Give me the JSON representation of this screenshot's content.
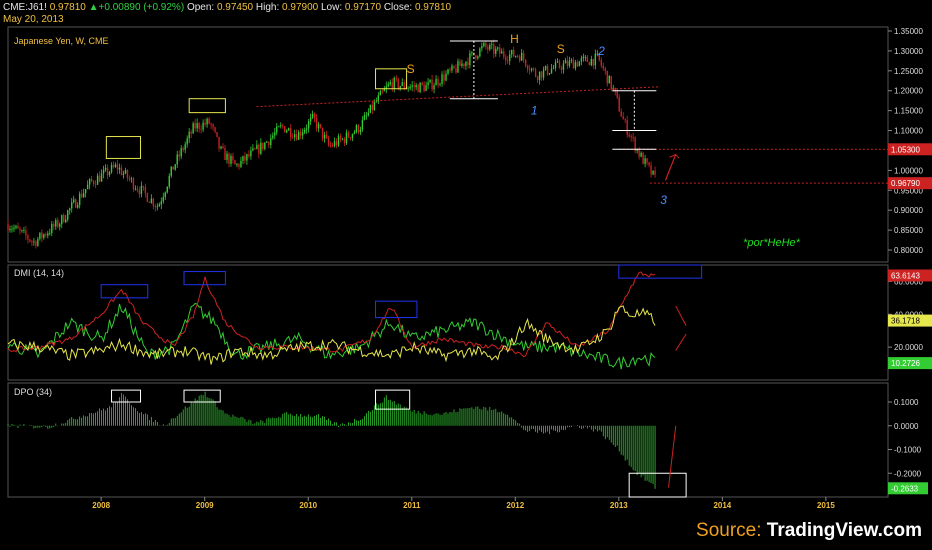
{
  "header": {
    "symbol": "CME:J61!",
    "last": "0.97810",
    "change": "+0.00890 (+0.92%)",
    "open_label": "Open:",
    "open": "0.97450",
    "high_label": "High:",
    "high": "0.97900",
    "low_label": "Low:",
    "low": "0.97170",
    "close_label": "Close:",
    "close": "0.97810",
    "date": "May 20, 2013"
  },
  "source": {
    "prefix": "Source: ",
    "brand": "TradingView.com"
  },
  "colors": {
    "up": "#33cc33",
    "down": "#cc2222",
    "dmi_plus": "#33cc33",
    "dmi_minus": "#cc2222",
    "adx": "#e6e64d",
    "box_yellow": "#e6e64d",
    "box_blue": "#2233ee",
    "box_white": "#ffffff",
    "annotation_orange": "#f0a020",
    "annotation_blue": "#4d8cff",
    "watermark": "#22dd22"
  },
  "chart_data": [
    {
      "type": "candlestick",
      "title": "Japanese Yen, W, CME",
      "ylim": [
        0.77,
        1.36
      ],
      "y_ticks": [
        "1.35000",
        "1.30000",
        "1.25000",
        "1.20000",
        "1.15000",
        "1.10000",
        "1.05000",
        "1.00000",
        "0.95000",
        "0.90000",
        "0.85000",
        "0.80000"
      ],
      "x_ticks": [
        "2008",
        "2009",
        "2010",
        "2011",
        "2012",
        "2013",
        "2014",
        "2015"
      ],
      "x_range": [
        2007.1,
        2015.6
      ],
      "price_path": [
        [
          2007.1,
          0.865
        ],
        [
          2007.35,
          0.82
        ],
        [
          2007.6,
          0.87
        ],
        [
          2007.9,
          0.97
        ],
        [
          2008.15,
          1.01
        ],
        [
          2008.3,
          0.97
        ],
        [
          2008.55,
          0.91
        ],
        [
          2008.7,
          1.01
        ],
        [
          2008.9,
          1.11
        ],
        [
          2009.05,
          1.12
        ],
        [
          2009.15,
          1.05
        ],
        [
          2009.3,
          1.01
        ],
        [
          2009.55,
          1.06
        ],
        [
          2009.75,
          1.11
        ],
        [
          2009.9,
          1.09
        ],
        [
          2010.05,
          1.13
        ],
        [
          2010.2,
          1.06
        ],
        [
          2010.35,
          1.08
        ],
        [
          2010.5,
          1.11
        ],
        [
          2010.65,
          1.17
        ],
        [
          2010.8,
          1.22
        ],
        [
          2010.95,
          1.21
        ],
        [
          2011.15,
          1.21
        ],
        [
          2011.4,
          1.25
        ],
        [
          2011.55,
          1.28
        ],
        [
          2011.7,
          1.31
        ],
        [
          2011.9,
          1.29
        ],
        [
          2012.05,
          1.29
        ],
        [
          2012.2,
          1.24
        ],
        [
          2012.4,
          1.26
        ],
        [
          2012.55,
          1.27
        ],
        [
          2012.8,
          1.28
        ],
        [
          2012.95,
          1.2
        ],
        [
          2013.05,
          1.12
        ],
        [
          2013.2,
          1.04
        ],
        [
          2013.35,
          0.978
        ]
      ],
      "price_labels": [
        {
          "text": "1.05300",
          "value": 1.053
        },
        {
          "text": "0.96790",
          "value": 0.9679
        }
      ],
      "annotations": {
        "s_left": "S",
        "head": "H",
        "s_right": "S",
        "wave1": "1",
        "wave2": "2",
        "wave3": "3",
        "watermark": "*por*HeHe*"
      }
    },
    {
      "type": "line",
      "title": "DMI (14, 14)",
      "series": [],
      "y_ticks": [
        "60.0000",
        "40.0000",
        "20.0000"
      ],
      "ylim": [
        0,
        70
      ],
      "value_labels": [
        {
          "text": "63.6143",
          "value": 63.6143
        },
        {
          "text": "36.1718",
          "value": 36.1718
        },
        {
          "text": "10.2726",
          "value": 10.2726
        }
      ],
      "plus_path": [
        [
          2007.1,
          22
        ],
        [
          2007.4,
          15
        ],
        [
          2007.7,
          35
        ],
        [
          2008.0,
          25
        ],
        [
          2008.2,
          45
        ],
        [
          2008.45,
          15
        ],
        [
          2008.7,
          20
        ],
        [
          2008.9,
          45
        ],
        [
          2009.1,
          35
        ],
        [
          2009.3,
          15
        ],
        [
          2009.6,
          20
        ],
        [
          2009.9,
          25
        ],
        [
          2010.2,
          15
        ],
        [
          2010.5,
          20
        ],
        [
          2010.8,
          35
        ],
        [
          2011.0,
          25
        ],
        [
          2011.3,
          30
        ],
        [
          2011.6,
          35
        ],
        [
          2011.9,
          25
        ],
        [
          2012.1,
          20
        ],
        [
          2012.4,
          20
        ],
        [
          2012.7,
          15
        ],
        [
          2013.0,
          10
        ],
        [
          2013.2,
          14
        ],
        [
          2013.35,
          12
        ]
      ],
      "minus_path": [
        [
          2007.1,
          18
        ],
        [
          2007.4,
          20
        ],
        [
          2007.7,
          25
        ],
        [
          2008.0,
          40
        ],
        [
          2008.2,
          55
        ],
        [
          2008.4,
          35
        ],
        [
          2008.7,
          20
        ],
        [
          2008.9,
          40
        ],
        [
          2009.0,
          62
        ],
        [
          2009.2,
          35
        ],
        [
          2009.5,
          20
        ],
        [
          2009.9,
          20
        ],
        [
          2010.3,
          18
        ],
        [
          2010.6,
          25
        ],
        [
          2010.8,
          45
        ],
        [
          2011.0,
          20
        ],
        [
          2011.3,
          25
        ],
        [
          2011.7,
          20
        ],
        [
          2011.9,
          20
        ],
        [
          2012.1,
          15
        ],
        [
          2012.3,
          35
        ],
        [
          2012.6,
          20
        ],
        [
          2012.9,
          30
        ],
        [
          2013.1,
          55
        ],
        [
          2013.2,
          65
        ],
        [
          2013.35,
          63
        ]
      ],
      "adx_path": [
        [
          2007.1,
          22
        ],
        [
          2007.4,
          20
        ],
        [
          2007.7,
          15
        ],
        [
          2008.0,
          18
        ],
        [
          2008.2,
          22
        ],
        [
          2008.5,
          15
        ],
        [
          2008.8,
          18
        ],
        [
          2009.1,
          12
        ],
        [
          2009.3,
          18
        ],
        [
          2009.6,
          15
        ],
        [
          2009.9,
          20
        ],
        [
          2010.2,
          22
        ],
        [
          2010.5,
          18
        ],
        [
          2010.8,
          15
        ],
        [
          2011.0,
          20
        ],
        [
          2011.3,
          15
        ],
        [
          2011.6,
          18
        ],
        [
          2011.8,
          12
        ],
        [
          2012.0,
          25
        ],
        [
          2012.1,
          35
        ],
        [
          2012.3,
          25
        ],
        [
          2012.6,
          18
        ],
        [
          2012.9,
          30
        ],
        [
          2013.0,
          45
        ],
        [
          2013.1,
          40
        ],
        [
          2013.25,
          40
        ],
        [
          2013.35,
          36
        ]
      ]
    },
    {
      "type": "bar",
      "title": "DPO (34)",
      "y_ticks": [
        "0.1000",
        "0.0000",
        "-0.1000",
        "-0.2000"
      ],
      "ylim": [
        -0.3,
        0.18
      ],
      "value_labels": [
        {
          "text": "-0.2633",
          "value": -0.2633
        }
      ],
      "dpo_path": [
        [
          2007.1,
          0.0
        ],
        [
          2007.5,
          -0.005
        ],
        [
          2007.8,
          0.04
        ],
        [
          2008.1,
          0.08
        ],
        [
          2008.2,
          0.13
        ],
        [
          2008.4,
          0.05
        ],
        [
          2008.6,
          0.0
        ],
        [
          2008.8,
          0.07
        ],
        [
          2009.0,
          0.14
        ],
        [
          2009.2,
          0.05
        ],
        [
          2009.5,
          0.01
        ],
        [
          2009.8,
          0.05
        ],
        [
          2010.1,
          0.04
        ],
        [
          2010.3,
          0.0
        ],
        [
          2010.5,
          0.03
        ],
        [
          2010.75,
          0.12
        ],
        [
          2011.0,
          0.06
        ],
        [
          2011.3,
          0.05
        ],
        [
          2011.6,
          0.08
        ],
        [
          2011.9,
          0.06
        ],
        [
          2012.1,
          -0.02
        ],
        [
          2012.3,
          -0.03
        ],
        [
          2012.6,
          0.0
        ],
        [
          2012.8,
          -0.02
        ],
        [
          2013.0,
          -0.1
        ],
        [
          2013.15,
          -0.19
        ],
        [
          2013.35,
          -0.26
        ]
      ]
    }
  ]
}
